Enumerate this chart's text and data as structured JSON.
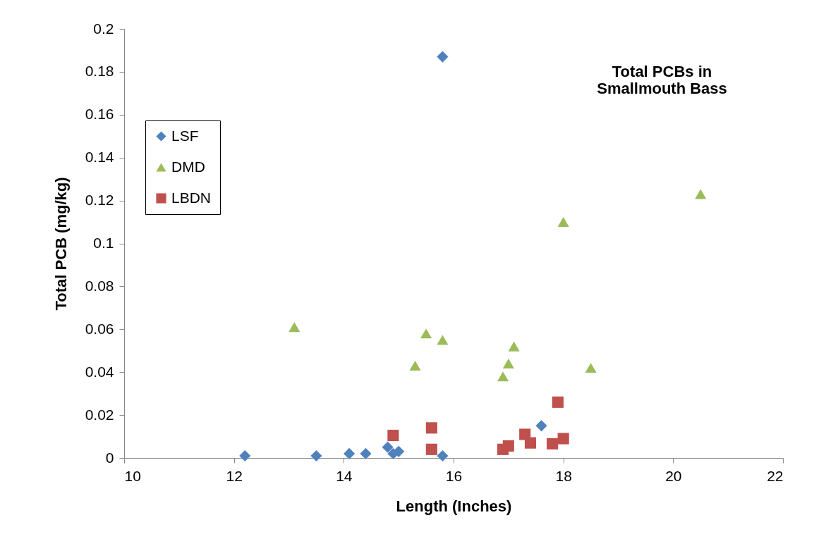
{
  "chart_data": {
    "type": "scatter",
    "title": "Total PCBs in\nSmallmouth Bass",
    "xlabel": "Length (Inches)",
    "ylabel": "Total PCB (mg/kg)",
    "xlim": [
      10,
      22
    ],
    "xticks": [
      10,
      12,
      14,
      16,
      18,
      20,
      22
    ],
    "ylim": [
      0,
      0.2
    ],
    "yticks": [
      0,
      0.02,
      0.04,
      0.06,
      0.08,
      0.1,
      0.12,
      0.14,
      0.16,
      0.18,
      0.2
    ],
    "grid": false,
    "legend": "top left",
    "series": [
      {
        "name": "LSF",
        "color": "#4f81bd",
        "marker": "diamond",
        "x": [
          12.2,
          13.5,
          14.1,
          14.4,
          14.8,
          14.9,
          15.0,
          15.8,
          17.6,
          15.8
        ],
        "values": [
          0.001,
          0.001,
          0.002,
          0.002,
          0.005,
          0.002,
          0.003,
          0.001,
          0.015,
          0.187
        ]
      },
      {
        "name": "DMD",
        "color": "#9bbb59",
        "marker": "triangle",
        "x": [
          13.1,
          15.3,
          15.5,
          15.8,
          16.9,
          17.0,
          17.1,
          18.0,
          18.5,
          20.5
        ],
        "values": [
          0.061,
          0.043,
          0.058,
          0.055,
          0.038,
          0.044,
          0.052,
          0.11,
          0.042,
          0.123
        ]
      },
      {
        "name": "LBDN",
        "color": "#c0504d",
        "marker": "square",
        "x": [
          14.9,
          15.6,
          15.6,
          16.9,
          17.0,
          17.3,
          17.4,
          17.8,
          18.0,
          17.9
        ],
        "values": [
          0.0105,
          0.014,
          0.004,
          0.004,
          0.0056,
          0.011,
          0.007,
          0.0066,
          0.009,
          0.026
        ]
      }
    ]
  }
}
